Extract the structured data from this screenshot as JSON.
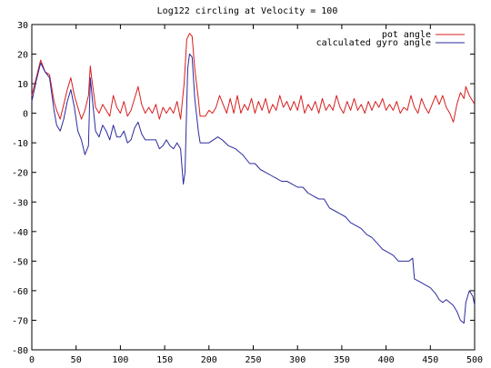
{
  "chart_data": {
    "type": "line",
    "title": "Log122  circling at Velocity = 100",
    "xlabel": "",
    "ylabel": "",
    "xlim": [
      0,
      500
    ],
    "ylim": [
      -80,
      30
    ],
    "xticks": [
      0,
      50,
      100,
      150,
      200,
      250,
      300,
      350,
      400,
      450,
      500
    ],
    "yticks": [
      -80,
      -70,
      -60,
      -50,
      -40,
      -30,
      -20,
      -10,
      0,
      10,
      20,
      30
    ],
    "grid": false,
    "legend_position": "top-right",
    "series": [
      {
        "name": "pot angle",
        "color": "#d81e1e",
        "points": [
          [
            0,
            6
          ],
          [
            5,
            12
          ],
          [
            10,
            18
          ],
          [
            15,
            14
          ],
          [
            20,
            13
          ],
          [
            25,
            4
          ],
          [
            28,
            1
          ],
          [
            32,
            -2
          ],
          [
            36,
            3
          ],
          [
            40,
            8
          ],
          [
            44,
            12
          ],
          [
            48,
            6
          ],
          [
            52,
            2
          ],
          [
            56,
            -2
          ],
          [
            60,
            1
          ],
          [
            64,
            6
          ],
          [
            66,
            16
          ],
          [
            68,
            11
          ],
          [
            72,
            2
          ],
          [
            76,
            0
          ],
          [
            80,
            3
          ],
          [
            84,
            1
          ],
          [
            88,
            -1
          ],
          [
            92,
            6
          ],
          [
            96,
            2
          ],
          [
            100,
            0
          ],
          [
            104,
            4
          ],
          [
            108,
            -1
          ],
          [
            112,
            1
          ],
          [
            116,
            5
          ],
          [
            120,
            9
          ],
          [
            124,
            3
          ],
          [
            128,
            0
          ],
          [
            132,
            2
          ],
          [
            136,
            0
          ],
          [
            140,
            3
          ],
          [
            144,
            -2
          ],
          [
            148,
            2
          ],
          [
            152,
            0
          ],
          [
            156,
            2
          ],
          [
            160,
            0
          ],
          [
            164,
            4
          ],
          [
            168,
            -2
          ],
          [
            172,
            10
          ],
          [
            175,
            25
          ],
          [
            178,
            27
          ],
          [
            181,
            26
          ],
          [
            184,
            15
          ],
          [
            188,
            5
          ],
          [
            190,
            -1
          ],
          [
            196,
            -1
          ],
          [
            200,
            1
          ],
          [
            204,
            0
          ],
          [
            208,
            2
          ],
          [
            212,
            6
          ],
          [
            216,
            3
          ],
          [
            220,
            0
          ],
          [
            224,
            5
          ],
          [
            228,
            0
          ],
          [
            232,
            6
          ],
          [
            236,
            0
          ],
          [
            240,
            3
          ],
          [
            244,
            1
          ],
          [
            248,
            5
          ],
          [
            252,
            0
          ],
          [
            256,
            4
          ],
          [
            260,
            1
          ],
          [
            264,
            5
          ],
          [
            268,
            0
          ],
          [
            272,
            3
          ],
          [
            276,
            1
          ],
          [
            280,
            6
          ],
          [
            284,
            2
          ],
          [
            288,
            4
          ],
          [
            292,
            1
          ],
          [
            296,
            4
          ],
          [
            300,
            1
          ],
          [
            304,
            6
          ],
          [
            308,
            0
          ],
          [
            312,
            3
          ],
          [
            316,
            1
          ],
          [
            320,
            4
          ],
          [
            324,
            0
          ],
          [
            328,
            5
          ],
          [
            332,
            1
          ],
          [
            336,
            3
          ],
          [
            340,
            1
          ],
          [
            344,
            6
          ],
          [
            348,
            2
          ],
          [
            352,
            0
          ],
          [
            356,
            4
          ],
          [
            360,
            1
          ],
          [
            364,
            5
          ],
          [
            368,
            1
          ],
          [
            372,
            3
          ],
          [
            376,
            0
          ],
          [
            380,
            4
          ],
          [
            384,
            1
          ],
          [
            388,
            4
          ],
          [
            392,
            2
          ],
          [
            396,
            5
          ],
          [
            400,
            1
          ],
          [
            404,
            3
          ],
          [
            408,
            1
          ],
          [
            412,
            4
          ],
          [
            416,
            0
          ],
          [
            420,
            2
          ],
          [
            424,
            1
          ],
          [
            428,
            6
          ],
          [
            432,
            2
          ],
          [
            436,
            0
          ],
          [
            440,
            5
          ],
          [
            444,
            2
          ],
          [
            448,
            0
          ],
          [
            452,
            3
          ],
          [
            456,
            6
          ],
          [
            460,
            3
          ],
          [
            464,
            6
          ],
          [
            468,
            2
          ],
          [
            472,
            0
          ],
          [
            476,
            -3
          ],
          [
            480,
            3
          ],
          [
            484,
            7
          ],
          [
            488,
            5
          ],
          [
            490,
            9
          ],
          [
            494,
            6
          ],
          [
            498,
            4
          ],
          [
            500,
            3
          ]
        ]
      },
      {
        "name": "calculated gyro angle",
        "color": "#2b2b9e",
        "points": [
          [
            0,
            4
          ],
          [
            5,
            11
          ],
          [
            10,
            17
          ],
          [
            15,
            14
          ],
          [
            20,
            12
          ],
          [
            25,
            1
          ],
          [
            28,
            -4
          ],
          [
            32,
            -6
          ],
          [
            36,
            -2
          ],
          [
            40,
            4
          ],
          [
            44,
            8
          ],
          [
            48,
            2
          ],
          [
            52,
            -6
          ],
          [
            56,
            -9
          ],
          [
            60,
            -14
          ],
          [
            64,
            -11
          ],
          [
            66,
            12
          ],
          [
            68,
            6
          ],
          [
            72,
            -6
          ],
          [
            76,
            -8
          ],
          [
            80,
            -4
          ],
          [
            84,
            -6
          ],
          [
            88,
            -9
          ],
          [
            92,
            -4
          ],
          [
            96,
            -8
          ],
          [
            100,
            -8
          ],
          [
            104,
            -6
          ],
          [
            108,
            -10
          ],
          [
            112,
            -9
          ],
          [
            116,
            -5
          ],
          [
            120,
            -3
          ],
          [
            124,
            -7
          ],
          [
            128,
            -9
          ],
          [
            132,
            -9
          ],
          [
            136,
            -9
          ],
          [
            140,
            -9
          ],
          [
            144,
            -12
          ],
          [
            148,
            -11
          ],
          [
            152,
            -9
          ],
          [
            156,
            -11
          ],
          [
            160,
            -12
          ],
          [
            164,
            -10
          ],
          [
            168,
            -12
          ],
          [
            171,
            -24
          ],
          [
            173,
            -20
          ],
          [
            176,
            15
          ],
          [
            178,
            20
          ],
          [
            181,
            19
          ],
          [
            184,
            5
          ],
          [
            188,
            -6
          ],
          [
            190,
            -10
          ],
          [
            200,
            -10
          ],
          [
            205,
            -9
          ],
          [
            210,
            -8
          ],
          [
            215,
            -9
          ],
          [
            222,
            -11
          ],
          [
            230,
            -12
          ],
          [
            238,
            -14
          ],
          [
            246,
            -17
          ],
          [
            252,
            -17
          ],
          [
            258,
            -19
          ],
          [
            264,
            -20
          ],
          [
            270,
            -21
          ],
          [
            276,
            -22
          ],
          [
            282,
            -23
          ],
          [
            288,
            -23
          ],
          [
            294,
            -24
          ],
          [
            300,
            -25
          ],
          [
            306,
            -25
          ],
          [
            312,
            -27
          ],
          [
            318,
            -28
          ],
          [
            324,
            -29
          ],
          [
            330,
            -29
          ],
          [
            336,
            -32
          ],
          [
            342,
            -33
          ],
          [
            348,
            -34
          ],
          [
            354,
            -35
          ],
          [
            360,
            -37
          ],
          [
            366,
            -38
          ],
          [
            372,
            -39
          ],
          [
            378,
            -41
          ],
          [
            384,
            -42
          ],
          [
            390,
            -44
          ],
          [
            396,
            -46
          ],
          [
            402,
            -47
          ],
          [
            408,
            -48
          ],
          [
            414,
            -50
          ],
          [
            420,
            -50
          ],
          [
            426,
            -50
          ],
          [
            430,
            -49
          ],
          [
            432,
            -56
          ],
          [
            438,
            -57
          ],
          [
            444,
            -58
          ],
          [
            450,
            -59
          ],
          [
            456,
            -61
          ],
          [
            460,
            -63
          ],
          [
            464,
            -64
          ],
          [
            468,
            -63
          ],
          [
            472,
            -64
          ],
          [
            476,
            -65
          ],
          [
            480,
            -67
          ],
          [
            484,
            -70
          ],
          [
            488,
            -71
          ],
          [
            490,
            -64
          ],
          [
            494,
            -60
          ],
          [
            498,
            -62
          ],
          [
            500,
            -65
          ]
        ]
      }
    ]
  }
}
